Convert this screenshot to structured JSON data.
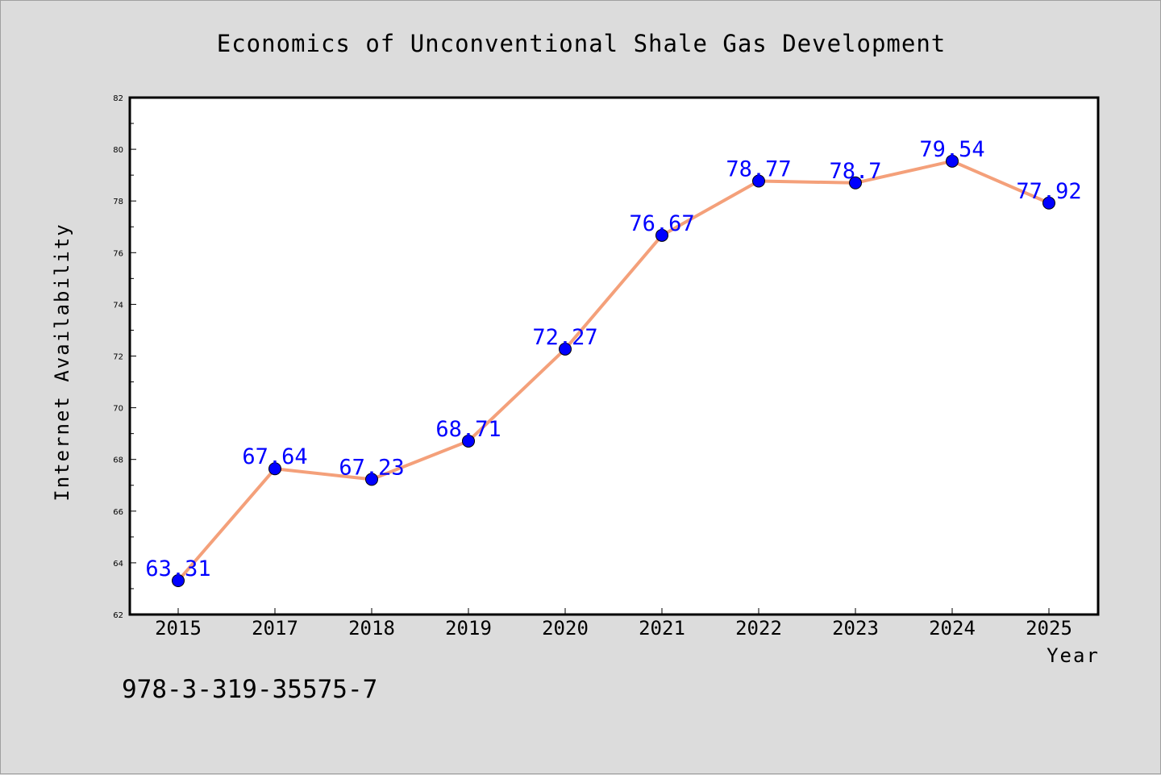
{
  "chart_data": {
    "type": "line",
    "title": "Economics of Unconventional Shale Gas Development",
    "xlabel": "Year",
    "ylabel": "Internet Availability",
    "categories": [
      "2015",
      "2017",
      "2018",
      "2019",
      "2020",
      "2021",
      "2022",
      "2023",
      "2024",
      "2025"
    ],
    "series": [
      {
        "values": [
          63.31,
          67.64,
          67.23,
          68.71,
          72.27,
          76.67,
          78.77,
          78.7,
          79.54,
          77.92
        ],
        "data_labels": [
          "63.31",
          "67.64",
          "67.23",
          "68.71",
          "72.27",
          "76.67",
          "78.77",
          "78.7",
          "79.54",
          "77.92"
        ]
      }
    ],
    "ylim": [
      62,
      82
    ],
    "yticks": [
      "62",
      "64",
      "66",
      "68",
      "70",
      "72",
      "74",
      "76",
      "78",
      "80",
      "82"
    ],
    "grid": false,
    "legend": "none",
    "colors": {
      "line": "#f4a07a",
      "marker": "#0000ff",
      "data_label": "#0000ff",
      "background": "#dcdcdc",
      "plot_background": "#ffffff"
    }
  },
  "footer": {
    "isbn": "978-3-319-35575-7"
  }
}
